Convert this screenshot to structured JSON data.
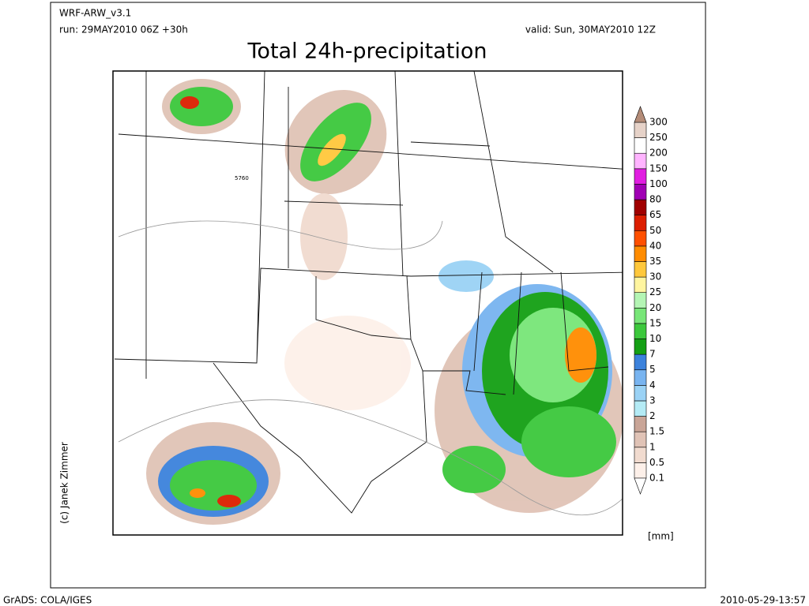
{
  "header": {
    "model": "WRF-ARW_v3.1",
    "run": "run: 29MAY2010 06Z +30h",
    "valid": "valid: Sun, 30MAY2010 12Z",
    "title": "Total 24h-precipitation"
  },
  "map": {
    "contour_label": "5760",
    "credit": "(c) Janek Zimmer"
  },
  "legend": {
    "unit": "[mm]",
    "levels": [
      "0.1",
      "0.5",
      "1",
      "1.5",
      "2",
      "3",
      "4",
      "5",
      "7",
      "10",
      "15",
      "20",
      "25",
      "30",
      "35",
      "40",
      "50",
      "65",
      "80",
      "100",
      "150",
      "200",
      "250",
      "300"
    ],
    "below_color": "#ffffff",
    "colors": [
      "#fdf0e9",
      "#f1dbcf",
      "#e0c3b6",
      "#c9a597",
      "#b4ebf5",
      "#9ad2f5",
      "#78b4f0",
      "#3c82dc",
      "#14a014",
      "#3cc83c",
      "#78e678",
      "#b4f5b4",
      "#fff5a0",
      "#ffc83c",
      "#ff8c00",
      "#ff5000",
      "#dc1e00",
      "#a00000",
      "#a000b4",
      "#e11ee1",
      "#ffb4ff",
      "#ffffff",
      "#e6d2c8"
    ],
    "above_color": "#b48c78"
  },
  "footer": {
    "left": "GrADS: COLA/IGES",
    "right": "2010-05-29-13:57"
  }
}
